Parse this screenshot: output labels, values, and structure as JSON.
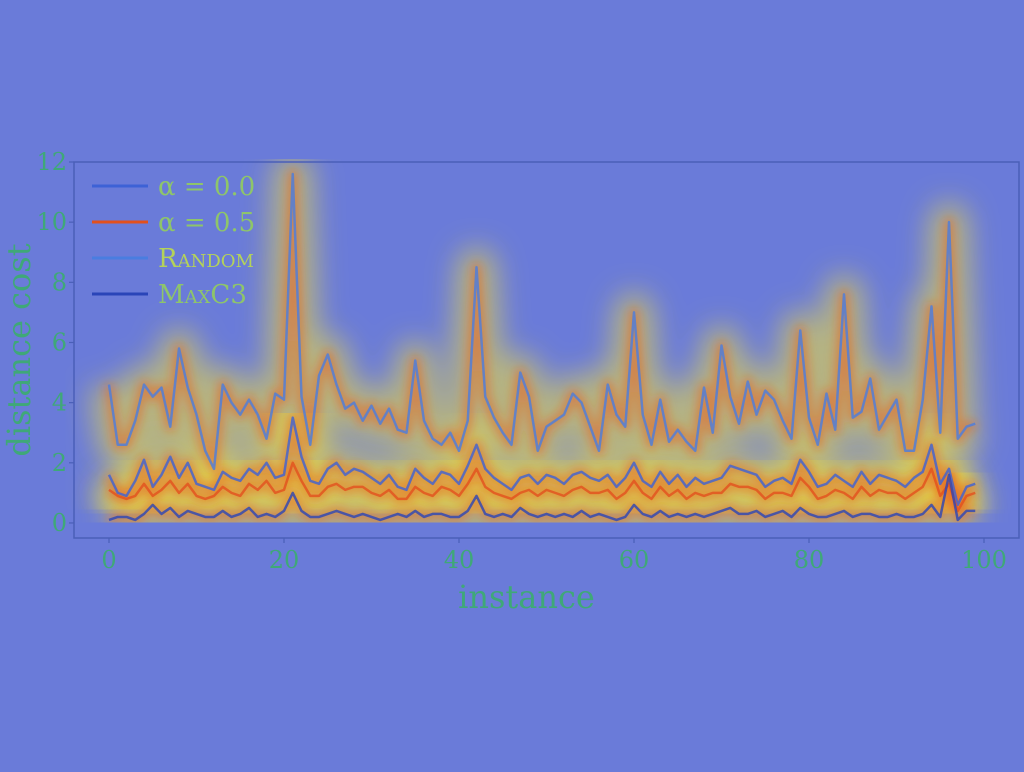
{
  "chart_data": {
    "type": "line",
    "xlabel": "instance",
    "ylabel": "distance cost",
    "xlim": [
      -4,
      104
    ],
    "ylim": [
      -0.5,
      12
    ],
    "xticks": [
      "0",
      "20",
      "40",
      "60",
      "80",
      "100"
    ],
    "yticks": [
      "0",
      "2",
      "4",
      "6",
      "8",
      "10",
      "12"
    ],
    "grid": false,
    "legend_position": "top-left",
    "colors": {
      "background": "#6a7bd9",
      "tick_text": "#3fa878",
      "legend_text": "#8ec56a",
      "random_legend_text": "#b4d25a",
      "axis_frame": "#4a5fb8"
    },
    "series": [
      {
        "name": "α = 0.0",
        "color": "#3d62d6",
        "values": [
          1.6,
          1.0,
          0.9,
          1.4,
          2.1,
          1.2,
          1.6,
          2.2,
          1.5,
          2.0,
          1.3,
          1.2,
          1.1,
          1.7,
          1.5,
          1.4,
          1.8,
          1.6,
          2.0,
          1.5,
          1.6,
          3.5,
          2.2,
          1.4,
          1.3,
          1.8,
          2.0,
          1.6,
          1.8,
          1.7,
          1.5,
          1.3,
          1.6,
          1.2,
          1.1,
          1.8,
          1.5,
          1.3,
          1.7,
          1.6,
          1.3,
          1.9,
          2.6,
          1.8,
          1.5,
          1.3,
          1.1,
          1.5,
          1.6,
          1.3,
          1.6,
          1.5,
          1.3,
          1.6,
          1.7,
          1.5,
          1.4,
          1.6,
          1.2,
          1.5,
          2.0,
          1.4,
          1.2,
          1.7,
          1.3,
          1.6,
          1.2,
          1.5,
          1.3,
          1.4,
          1.5,
          1.9,
          1.8,
          1.7,
          1.6,
          1.2,
          1.4,
          1.5,
          1.3,
          2.1,
          1.7,
          1.2,
          1.3,
          1.6,
          1.4,
          1.2,
          1.7,
          1.3,
          1.6,
          1.5,
          1.4,
          1.2,
          1.5,
          1.7,
          2.6,
          1.3,
          1.8,
          0.6,
          1.2,
          1.3
        ]
      },
      {
        "name": "α = 0.5",
        "color": "#e2501e",
        "values": [
          1.1,
          0.9,
          0.8,
          0.9,
          1.3,
          0.9,
          1.1,
          1.4,
          1.0,
          1.3,
          0.9,
          0.8,
          0.9,
          1.2,
          1.0,
          0.9,
          1.3,
          1.1,
          1.4,
          1.0,
          1.1,
          2.0,
          1.4,
          0.9,
          0.9,
          1.2,
          1.3,
          1.1,
          1.2,
          1.2,
          1.0,
          0.9,
          1.1,
          0.8,
          0.8,
          1.2,
          1.0,
          0.9,
          1.2,
          1.1,
          0.9,
          1.3,
          1.8,
          1.2,
          1.0,
          0.9,
          0.8,
          1.0,
          1.1,
          0.9,
          1.1,
          1.0,
          0.9,
          1.1,
          1.2,
          1.0,
          1.0,
          1.1,
          0.8,
          1.0,
          1.4,
          1.0,
          0.8,
          1.2,
          0.9,
          1.1,
          0.8,
          1.0,
          0.9,
          1.0,
          1.0,
          1.3,
          1.2,
          1.2,
          1.1,
          0.8,
          1.0,
          1.0,
          0.9,
          1.5,
          1.2,
          0.8,
          0.9,
          1.1,
          1.0,
          0.8,
          1.2,
          0.9,
          1.1,
          1.0,
          1.0,
          0.8,
          1.0,
          1.2,
          1.8,
          0.9,
          1.3,
          0.4,
          0.9,
          1.0
        ]
      },
      {
        "name": "Random",
        "color": "#4a7de0",
        "values": [
          4.6,
          2.6,
          2.6,
          3.4,
          4.6,
          4.2,
          4.5,
          3.2,
          5.8,
          4.5,
          3.6,
          2.4,
          1.8,
          4.6,
          4.0,
          3.6,
          4.1,
          3.6,
          2.8,
          4.3,
          4.1,
          11.6,
          4.2,
          2.6,
          4.9,
          5.6,
          4.6,
          3.8,
          4.0,
          3.4,
          3.9,
          3.3,
          3.8,
          3.1,
          3.0,
          5.4,
          3.4,
          2.8,
          2.6,
          3.0,
          2.4,
          3.4,
          8.5,
          4.2,
          3.5,
          3.0,
          2.6,
          5.0,
          4.2,
          2.4,
          3.2,
          3.4,
          3.6,
          4.3,
          4.0,
          3.2,
          2.4,
          4.6,
          3.6,
          3.2,
          7.0,
          3.6,
          2.6,
          4.1,
          2.7,
          3.1,
          2.7,
          2.4,
          4.5,
          3.0,
          5.9,
          4.2,
          3.3,
          4.7,
          3.6,
          4.4,
          4.1,
          3.4,
          2.8,
          6.4,
          3.5,
          2.6,
          4.3,
          3.1,
          7.6,
          3.5,
          3.7,
          4.8,
          3.1,
          3.6,
          4.1,
          2.4,
          2.4,
          4.1,
          7.2,
          3.0,
          10.0,
          2.8,
          3.2,
          3.3
        ]
      },
      {
        "name": "MaxC3",
        "color": "#2a45b8",
        "values": [
          0.1,
          0.2,
          0.2,
          0.1,
          0.3,
          0.6,
          0.3,
          0.5,
          0.2,
          0.4,
          0.3,
          0.2,
          0.2,
          0.4,
          0.2,
          0.3,
          0.5,
          0.2,
          0.3,
          0.2,
          0.4,
          1.0,
          0.4,
          0.2,
          0.2,
          0.3,
          0.4,
          0.3,
          0.2,
          0.3,
          0.2,
          0.1,
          0.2,
          0.3,
          0.2,
          0.4,
          0.2,
          0.3,
          0.3,
          0.2,
          0.2,
          0.4,
          0.9,
          0.3,
          0.2,
          0.3,
          0.2,
          0.5,
          0.3,
          0.2,
          0.3,
          0.2,
          0.3,
          0.2,
          0.4,
          0.2,
          0.3,
          0.2,
          0.1,
          0.2,
          0.6,
          0.3,
          0.2,
          0.4,
          0.2,
          0.3,
          0.2,
          0.3,
          0.2,
          0.3,
          0.4,
          0.5,
          0.3,
          0.3,
          0.4,
          0.2,
          0.3,
          0.4,
          0.2,
          0.5,
          0.3,
          0.2,
          0.2,
          0.3,
          0.4,
          0.2,
          0.3,
          0.3,
          0.2,
          0.2,
          0.3,
          0.2,
          0.2,
          0.3,
          0.6,
          0.2,
          1.6,
          0.1,
          0.4,
          0.4
        ]
      }
    ]
  }
}
